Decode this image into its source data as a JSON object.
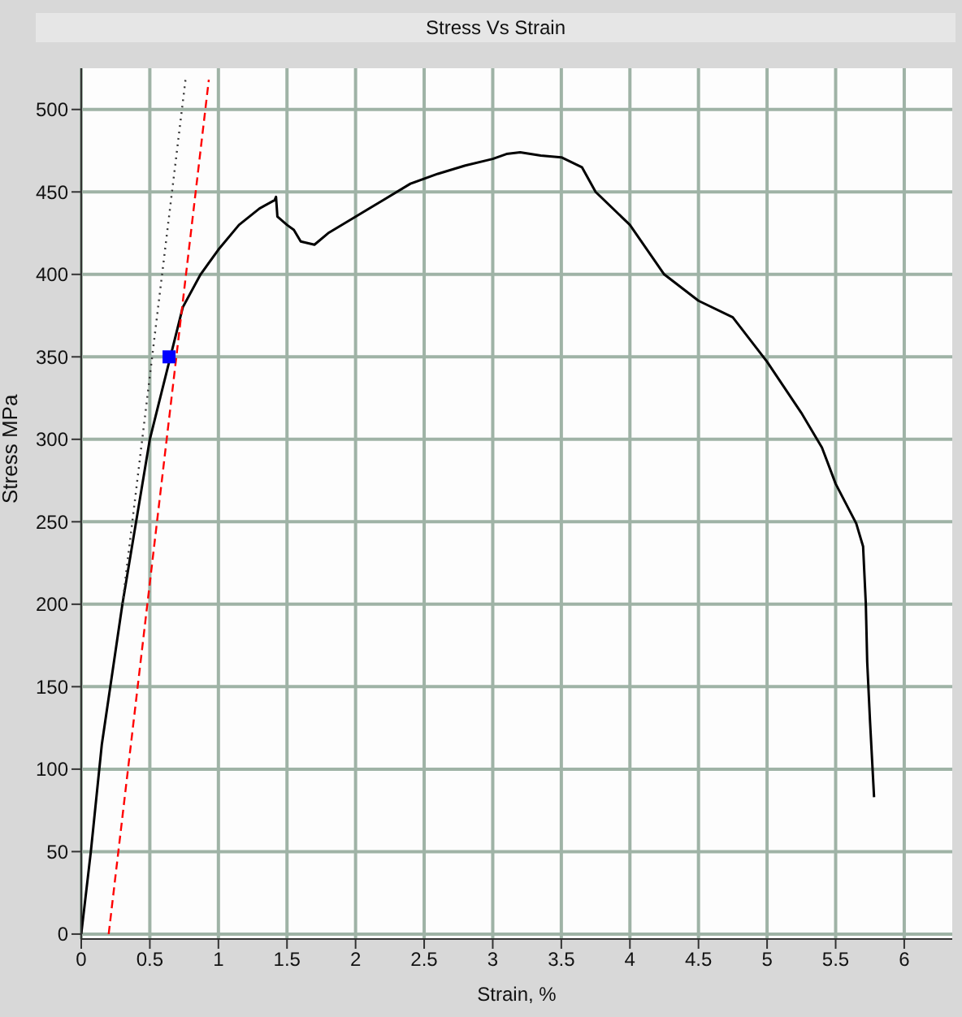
{
  "chart_data": {
    "type": "line",
    "title": "Stress Vs Strain",
    "xlabel": "Strain, %",
    "ylabel": "Stress MPa",
    "xlim": [
      0,
      6.35
    ],
    "ylim": [
      -3,
      525
    ],
    "xticks": [
      0,
      0.5,
      1,
      1.5,
      2,
      2.5,
      3,
      3.5,
      4,
      4.5,
      5,
      5.5,
      6
    ],
    "yticks": [
      0,
      50,
      100,
      150,
      200,
      250,
      300,
      350,
      400,
      450,
      500
    ],
    "grid": true,
    "series": [
      {
        "color": "#000000",
        "line_style": "solid",
        "marker": "none",
        "x": [
          0,
          0.07,
          0.15,
          0.3,
          0.5,
          0.74,
          0.87,
          1.0,
          1.15,
          1.3,
          1.41,
          1.42,
          1.43,
          1.5,
          1.55,
          1.6,
          1.7,
          1.8,
          2.0,
          2.2,
          2.4,
          2.6,
          2.8,
          3.0,
          3.1,
          3.2,
          3.35,
          3.5,
          3.65,
          3.75,
          4.0,
          4.25,
          4.5,
          4.75,
          5.0,
          5.25,
          5.4,
          5.5,
          5.65,
          5.7,
          5.72,
          5.73,
          5.75,
          5.78
        ],
        "values": [
          0,
          50,
          115,
          200,
          300,
          380,
          400,
          415,
          430,
          440,
          445,
          447,
          435,
          430,
          427,
          420,
          418,
          425,
          435,
          445,
          455,
          461,
          466,
          470,
          473,
          474,
          472,
          471,
          465,
          450,
          430,
          400,
          384,
          374,
          347,
          316,
          295,
          273,
          249,
          235,
          200,
          165,
          130,
          83
        ]
      },
      {
        "color": "#ff0000",
        "line_style": "dashed",
        "marker": "none",
        "x": [
          0.2,
          0.93
        ],
        "values": [
          0,
          518
        ]
      },
      {
        "color": "#333333",
        "line_style": "dotted",
        "marker": "none",
        "x": [
          0.3,
          0.76
        ],
        "values": [
          200,
          518
        ]
      },
      {
        "type": "scatter",
        "color": "#0000ff",
        "marker": "square",
        "x": [
          0.64
        ],
        "values": [
          350
        ]
      }
    ]
  }
}
